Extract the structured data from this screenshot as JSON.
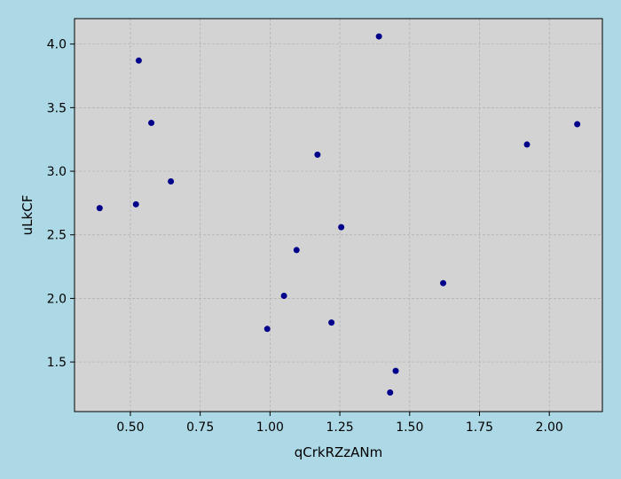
{
  "colors": {
    "figure_background": "#add8e6",
    "plot_background": "#d3d3d3",
    "marker": "#00008b",
    "grid": "#b0b0b0",
    "axes": "#000000"
  },
  "chart_data": {
    "type": "scatter",
    "title": "",
    "xlabel": "qCrkRZzANm",
    "ylabel": "uLkCF",
    "xlim": [
      0.3,
      2.19
    ],
    "ylim": [
      1.11,
      4.2
    ],
    "grid": true,
    "x_ticks": [
      0.5,
      0.75,
      1.0,
      1.25,
      1.5,
      1.75,
      2.0
    ],
    "x_tick_labels": [
      "0.50",
      "0.75",
      "1.00",
      "1.25",
      "1.50",
      "1.75",
      "2.00"
    ],
    "y_ticks": [
      1.5,
      2.0,
      2.5,
      3.0,
      3.5,
      4.0
    ],
    "y_tick_labels": [
      "1.5",
      "2.0",
      "2.5",
      "3.0",
      "3.5",
      "4.0"
    ],
    "points": [
      {
        "x": 0.39,
        "y": 2.71
      },
      {
        "x": 0.52,
        "y": 2.74
      },
      {
        "x": 0.53,
        "y": 3.87
      },
      {
        "x": 0.575,
        "y": 3.38
      },
      {
        "x": 0.645,
        "y": 2.92
      },
      {
        "x": 0.99,
        "y": 1.76
      },
      {
        "x": 1.05,
        "y": 2.02
      },
      {
        "x": 1.095,
        "y": 2.38
      },
      {
        "x": 1.17,
        "y": 3.13
      },
      {
        "x": 1.22,
        "y": 1.81
      },
      {
        "x": 1.255,
        "y": 2.56
      },
      {
        "x": 1.39,
        "y": 4.06
      },
      {
        "x": 1.43,
        "y": 1.26
      },
      {
        "x": 1.45,
        "y": 1.43
      },
      {
        "x": 1.62,
        "y": 2.12
      },
      {
        "x": 1.92,
        "y": 3.21
      },
      {
        "x": 2.1,
        "y": 3.37
      }
    ]
  }
}
